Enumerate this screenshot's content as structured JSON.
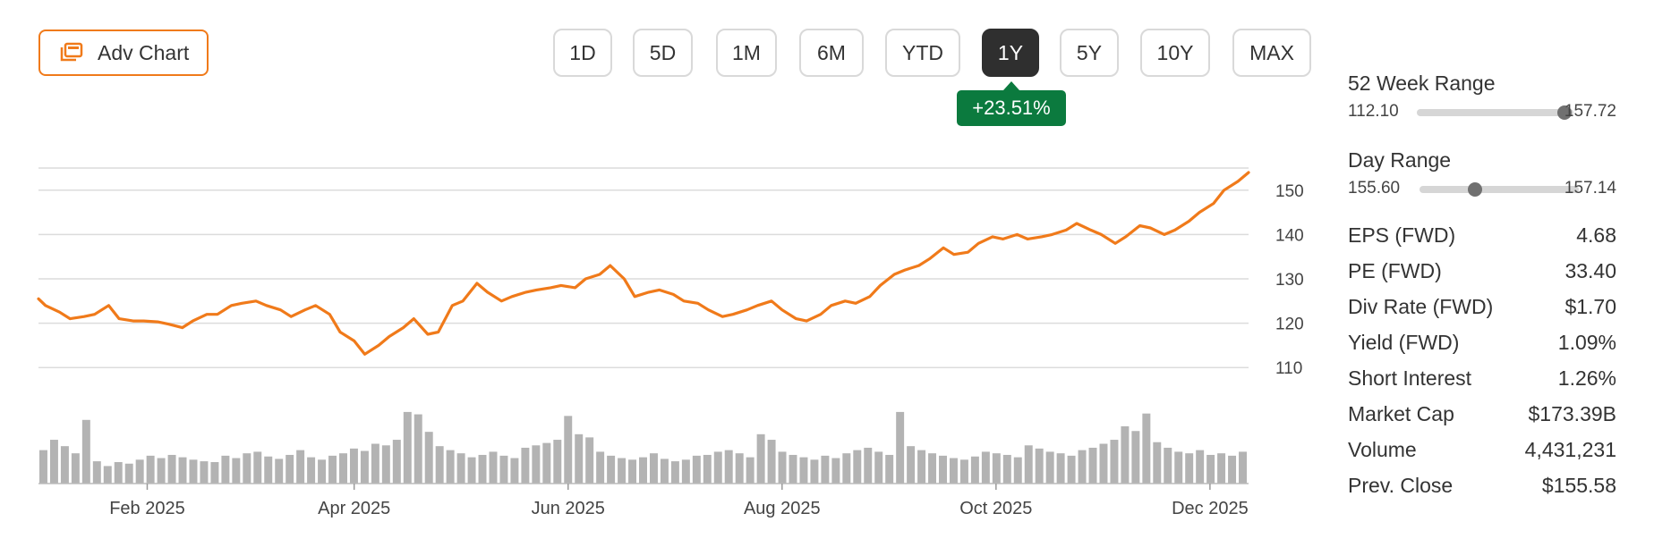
{
  "toolbar": {
    "adv_chart_label": "Adv Chart",
    "ranges": [
      "1D",
      "5D",
      "1M",
      "6M",
      "YTD",
      "1Y",
      "5Y",
      "10Y",
      "MAX"
    ],
    "active_range": "1Y",
    "change": "+23.51%"
  },
  "colors": {
    "line": "#f07a1a",
    "volume": "#b3b3b3",
    "grid": "#dcdcdc",
    "badge": "#0b7a3e",
    "active": "#2f2f2f"
  },
  "stats": {
    "week52": {
      "label": "52 Week Range",
      "low": "112.10",
      "high": "157.72",
      "position": 0.94
    },
    "day": {
      "label": "Day Range",
      "low": "155.60",
      "high": "157.14",
      "position": 0.35
    },
    "rows": [
      {
        "label": "EPS (FWD)",
        "value": "4.68"
      },
      {
        "label": "PE (FWD)",
        "value": "33.40"
      },
      {
        "label": "Div Rate (FWD)",
        "value": "$1.70"
      },
      {
        "label": "Yield (FWD)",
        "value": "1.09%"
      },
      {
        "label": "Short Interest",
        "value": "1.26%"
      },
      {
        "label": "Market Cap",
        "value": "$173.39B"
      },
      {
        "label": "Volume",
        "value": "4,431,231"
      },
      {
        "label": "Prev. Close",
        "value": "$155.58"
      }
    ]
  },
  "chart_data": {
    "type": "line",
    "ylim": [
      105,
      155
    ],
    "yticks": [
      110,
      120,
      130,
      140,
      150
    ],
    "xlim": [
      "2025-01-01",
      "2025-12-12"
    ],
    "xticks": [
      {
        "label": "Feb 2025",
        "date": "2025-02-01"
      },
      {
        "label": "Apr 2025",
        "date": "2025-04-01"
      },
      {
        "label": "Jun 2025",
        "date": "2025-06-01"
      },
      {
        "label": "Aug 2025",
        "date": "2025-08-01"
      },
      {
        "label": "Oct 2025",
        "date": "2025-10-01"
      },
      {
        "label": "Dec 2025",
        "date": "2025-12-01"
      }
    ],
    "grid": true,
    "price": [
      [
        "2025-01-01",
        125.5
      ],
      [
        "2025-01-03",
        124
      ],
      [
        "2025-01-07",
        122.5
      ],
      [
        "2025-01-10",
        121
      ],
      [
        "2025-01-14",
        121.5
      ],
      [
        "2025-01-17",
        122
      ],
      [
        "2025-01-21",
        124
      ],
      [
        "2025-01-24",
        121
      ],
      [
        "2025-01-28",
        120.5
      ],
      [
        "2025-01-31",
        120.5
      ],
      [
        "2025-02-04",
        120.3
      ],
      [
        "2025-02-07",
        119.8
      ],
      [
        "2025-02-11",
        119
      ],
      [
        "2025-02-14",
        120.5
      ],
      [
        "2025-02-18",
        122
      ],
      [
        "2025-02-21",
        122
      ],
      [
        "2025-02-25",
        124
      ],
      [
        "2025-02-28",
        124.5
      ],
      [
        "2025-03-04",
        125
      ],
      [
        "2025-03-07",
        124
      ],
      [
        "2025-03-11",
        123
      ],
      [
        "2025-03-14",
        121.5
      ],
      [
        "2025-03-18",
        123
      ],
      [
        "2025-03-21",
        124
      ],
      [
        "2025-03-25",
        122
      ],
      [
        "2025-03-28",
        118
      ],
      [
        "2025-04-01",
        116
      ],
      [
        "2025-04-04",
        113
      ],
      [
        "2025-04-08",
        115
      ],
      [
        "2025-04-11",
        117
      ],
      [
        "2025-04-15",
        119
      ],
      [
        "2025-04-18",
        121
      ],
      [
        "2025-04-22",
        117.5
      ],
      [
        "2025-04-25",
        118
      ],
      [
        "2025-04-29",
        124
      ],
      [
        "2025-05-02",
        125
      ],
      [
        "2025-05-06",
        129
      ],
      [
        "2025-05-09",
        127
      ],
      [
        "2025-05-13",
        125
      ],
      [
        "2025-05-16",
        126
      ],
      [
        "2025-05-20",
        127
      ],
      [
        "2025-05-23",
        127.5
      ],
      [
        "2025-05-27",
        128
      ],
      [
        "2025-05-30",
        128.5
      ],
      [
        "2025-06-03",
        128
      ],
      [
        "2025-06-06",
        130
      ],
      [
        "2025-06-10",
        131
      ],
      [
        "2025-06-13",
        133
      ],
      [
        "2025-06-17",
        130
      ],
      [
        "2025-06-20",
        126
      ],
      [
        "2025-06-24",
        127
      ],
      [
        "2025-06-27",
        127.5
      ],
      [
        "2025-07-01",
        126.5
      ],
      [
        "2025-07-04",
        125
      ],
      [
        "2025-07-08",
        124.5
      ],
      [
        "2025-07-11",
        123
      ],
      [
        "2025-07-15",
        121.5
      ],
      [
        "2025-07-18",
        122
      ],
      [
        "2025-07-22",
        123
      ],
      [
        "2025-07-25",
        124
      ],
      [
        "2025-07-29",
        125
      ],
      [
        "2025-08-01",
        123
      ],
      [
        "2025-08-05",
        121
      ],
      [
        "2025-08-08",
        120.5
      ],
      [
        "2025-08-12",
        122
      ],
      [
        "2025-08-15",
        124
      ],
      [
        "2025-08-19",
        125
      ],
      [
        "2025-08-22",
        124.5
      ],
      [
        "2025-08-26",
        126
      ],
      [
        "2025-08-29",
        128.5
      ],
      [
        "2025-09-02",
        131
      ],
      [
        "2025-09-05",
        132
      ],
      [
        "2025-09-09",
        133
      ],
      [
        "2025-09-12",
        134.5
      ],
      [
        "2025-09-16",
        137
      ],
      [
        "2025-09-19",
        135.5
      ],
      [
        "2025-09-23",
        136
      ],
      [
        "2025-09-26",
        138
      ],
      [
        "2025-09-30",
        139.5
      ],
      [
        "2025-10-03",
        139
      ],
      [
        "2025-10-07",
        140
      ],
      [
        "2025-10-10",
        139
      ],
      [
        "2025-10-14",
        139.5
      ],
      [
        "2025-10-17",
        140
      ],
      [
        "2025-10-21",
        141
      ],
      [
        "2025-10-24",
        142.5
      ],
      [
        "2025-10-28",
        141
      ],
      [
        "2025-10-31",
        140
      ],
      [
        "2025-11-04",
        138
      ],
      [
        "2025-11-07",
        139.5
      ],
      [
        "2025-11-11",
        142
      ],
      [
        "2025-11-14",
        141.5
      ],
      [
        "2025-11-18",
        140
      ],
      [
        "2025-11-21",
        141
      ],
      [
        "2025-11-25",
        143
      ],
      [
        "2025-11-28",
        145
      ],
      [
        "2025-12-02",
        147
      ],
      [
        "2025-12-05",
        150
      ],
      [
        "2025-12-09",
        152
      ],
      [
        "2025-12-12",
        154
      ]
    ],
    "volume": [
      0.42,
      0.55,
      0.47,
      0.38,
      0.8,
      0.28,
      0.22,
      0.27,
      0.25,
      0.3,
      0.35,
      0.32,
      0.36,
      0.33,
      0.3,
      0.28,
      0.27,
      0.35,
      0.32,
      0.38,
      0.4,
      0.34,
      0.31,
      0.36,
      0.42,
      0.33,
      0.3,
      0.35,
      0.38,
      0.44,
      0.41,
      0.5,
      0.48,
      0.55,
      0.9,
      0.87,
      0.65,
      0.47,
      0.42,
      0.38,
      0.33,
      0.36,
      0.4,
      0.35,
      0.32,
      0.45,
      0.48,
      0.51,
      0.55,
      0.85,
      0.62,
      0.58,
      0.4,
      0.35,
      0.32,
      0.3,
      0.33,
      0.38,
      0.31,
      0.28,
      0.3,
      0.35,
      0.36,
      0.4,
      0.42,
      0.38,
      0.33,
      0.62,
      0.55,
      0.4,
      0.36,
      0.33,
      0.3,
      0.35,
      0.32,
      0.38,
      0.42,
      0.45,
      0.4,
      0.36,
      0.9,
      0.47,
      0.42,
      0.38,
      0.35,
      0.32,
      0.3,
      0.34,
      0.4,
      0.38,
      0.36,
      0.33,
      0.48,
      0.44,
      0.4,
      0.38,
      0.35,
      0.42,
      0.45,
      0.5,
      0.55,
      0.72,
      0.66,
      0.88,
      0.52,
      0.45,
      0.4,
      0.38,
      0.42,
      0.36,
      0.38,
      0.35,
      0.4
    ]
  }
}
